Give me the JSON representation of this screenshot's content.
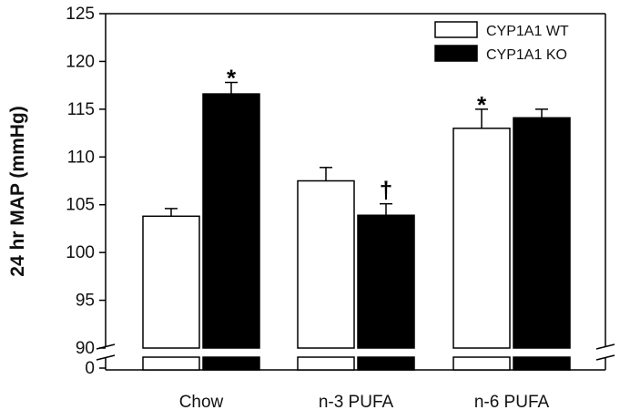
{
  "chart_data": {
    "type": "bar",
    "title": "",
    "xlabel": "",
    "ylabel": "24 hr MAP (mmHg)",
    "categories": [
      "Chow",
      "n-3 PUFA",
      "n-6 PUFA"
    ],
    "series": [
      {
        "name": "CYP1A1 WT",
        "color": "#ffffff",
        "values": [
          103.8,
          107.5,
          113.0
        ],
        "errors": [
          0.8,
          1.4,
          2.0
        ],
        "annotations": [
          "",
          "",
          "*"
        ]
      },
      {
        "name": "CYP1A1 KO",
        "color": "#000000",
        "values": [
          116.6,
          103.9,
          114.1
        ],
        "errors": [
          1.2,
          1.2,
          0.9
        ],
        "annotations": [
          "*",
          "†",
          ""
        ]
      }
    ],
    "ylim": [
      90,
      125
    ],
    "yticks": [
      "90",
      "95",
      "100",
      "105",
      "110",
      "115",
      "120",
      "125"
    ],
    "axis_break": {
      "lower_tick": "0",
      "break_between": [
        0,
        90
      ]
    },
    "grid": false,
    "legend_position": "top-right"
  }
}
